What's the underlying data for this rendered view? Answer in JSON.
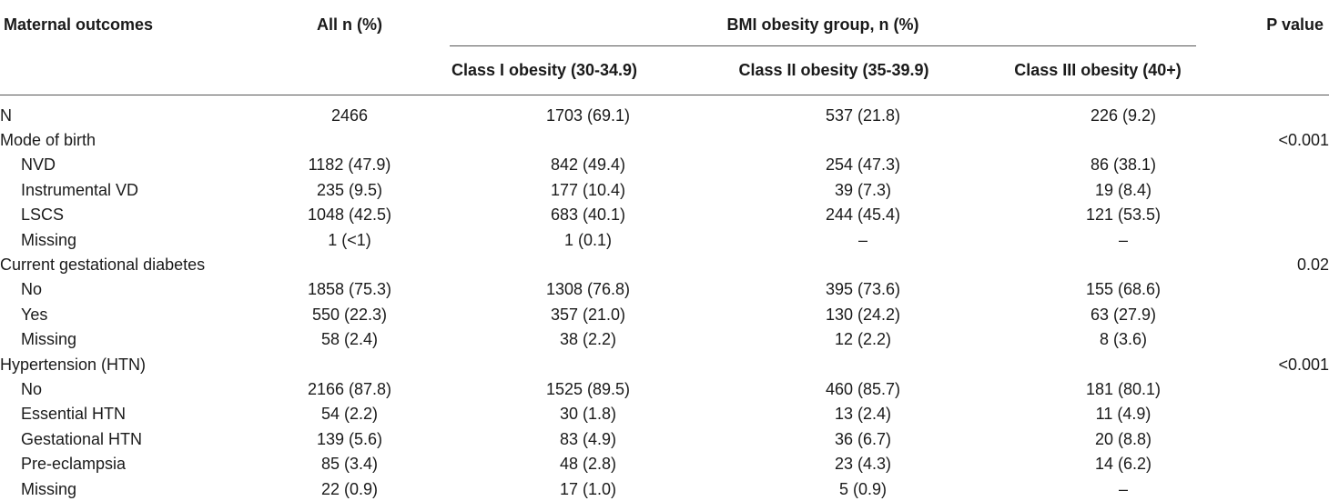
{
  "headers": {
    "outcome": "Maternal outcomes",
    "all": "All n (%)",
    "group": "BMI obesity group, n (%)",
    "class1": "Class I obesity (30-34.9)",
    "class2": "Class II obesity (35-39.9)",
    "class3": "Class III obesity (40+)",
    "pvalue": "P value"
  },
  "rows": [
    {
      "label": "N",
      "indent": false,
      "all": "2466",
      "c1": "1703 (69.1)",
      "c2": "537 (21.8)",
      "c3": "226 (9.2)",
      "p": ""
    },
    {
      "label": "Mode of birth",
      "indent": false,
      "all": "",
      "c1": "",
      "c2": "",
      "c3": "",
      "p": "<0.001"
    },
    {
      "label": "NVD",
      "indent": true,
      "all": "1182 (47.9)",
      "c1": "842 (49.4)",
      "c2": "254 (47.3)",
      "c3": "86 (38.1)",
      "p": ""
    },
    {
      "label": "Instrumental VD",
      "indent": true,
      "all": "235 (9.5)",
      "c1": "177 (10.4)",
      "c2": "39 (7.3)",
      "c3": "19 (8.4)",
      "p": ""
    },
    {
      "label": "LSCS",
      "indent": true,
      "all": "1048 (42.5)",
      "c1": "683 (40.1)",
      "c2": "244 (45.4)",
      "c3": "121 (53.5)",
      "p": ""
    },
    {
      "label": "Missing",
      "indent": true,
      "all": "1 (<1)",
      "c1": "1 (0.1)",
      "c2": "–",
      "c3": "–",
      "p": ""
    },
    {
      "label": "Current gestational diabetes",
      "indent": false,
      "all": "",
      "c1": "",
      "c2": "",
      "c3": "",
      "p": "0.02"
    },
    {
      "label": "No",
      "indent": true,
      "all": "1858 (75.3)",
      "c1": "1308 (76.8)",
      "c2": "395 (73.6)",
      "c3": "155 (68.6)",
      "p": ""
    },
    {
      "label": "Yes",
      "indent": true,
      "all": "550 (22.3)",
      "c1": "357 (21.0)",
      "c2": "130 (24.2)",
      "c3": "63 (27.9)",
      "p": ""
    },
    {
      "label": "Missing",
      "indent": true,
      "all": "58 (2.4)",
      "c1": "38 (2.2)",
      "c2": "12 (2.2)",
      "c3": "8 (3.6)",
      "p": ""
    },
    {
      "label": "Hypertension (HTN)",
      "indent": false,
      "all": "",
      "c1": "",
      "c2": "",
      "c3": "",
      "p": "<0.001"
    },
    {
      "label": "No",
      "indent": true,
      "all": "2166 (87.8)",
      "c1": "1525 (89.5)",
      "c2": "460 (85.7)",
      "c3": "181 (80.1)",
      "p": ""
    },
    {
      "label": "Essential HTN",
      "indent": true,
      "all": "54 (2.2)",
      "c1": "30 (1.8)",
      "c2": "13 (2.4)",
      "c3": "11 (4.9)",
      "p": ""
    },
    {
      "label": "Gestational HTN",
      "indent": true,
      "all": "139 (5.6)",
      "c1": "83 (4.9)",
      "c2": "36 (6.7)",
      "c3": "20 (8.8)",
      "p": ""
    },
    {
      "label": "Pre-eclampsia",
      "indent": true,
      "all": "85 (3.4)",
      "c1": "48 (2.8)",
      "c2": "23 (4.3)",
      "c3": "14 (6.2)",
      "p": ""
    },
    {
      "label": "Missing",
      "indent": true,
      "all": "22 (0.9)",
      "c1": "17 (1.0)",
      "c2": "5 (0.9)",
      "c3": "–",
      "p": ""
    }
  ]
}
